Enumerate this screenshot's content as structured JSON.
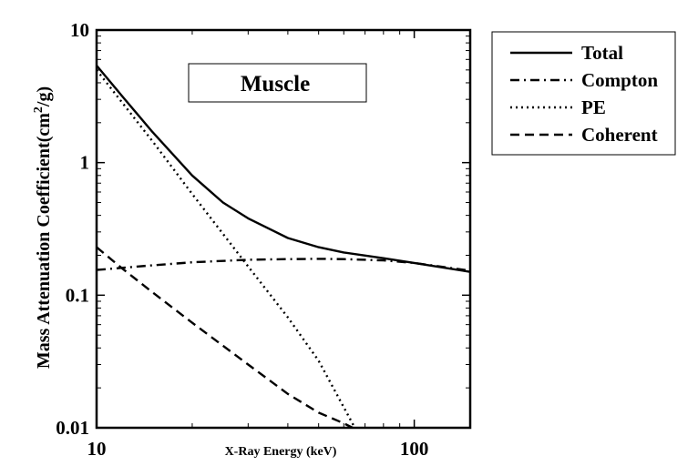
{
  "chart_data": {
    "type": "line",
    "title": "Muscle",
    "xlabel": "X-Ray Energy (keV)",
    "ylabel": "Mass Attenuation Coefficient(cm",
    "ylabel_sup": "2",
    "ylabel_tail": "/g)",
    "x_scale": "log",
    "y_scale": "log",
    "xlim": [
      10,
      150
    ],
    "ylim": [
      0.01,
      10
    ],
    "x_ticks": [
      {
        "value": 10,
        "label": "10"
      },
      {
        "value": 100,
        "label": "100"
      }
    ],
    "y_ticks": [
      {
        "value": 0.01,
        "label": "0.01"
      },
      {
        "value": 0.1,
        "label": "0.1"
      },
      {
        "value": 1,
        "label": "1"
      },
      {
        "value": 10,
        "label": "10"
      }
    ],
    "grid": false,
    "legend_position": "outside-right-top",
    "series": [
      {
        "name": "Total",
        "dash": "solid",
        "x": [
          10,
          12,
          15,
          20,
          25,
          30,
          40,
          50,
          60,
          80,
          100,
          150
        ],
        "y": [
          5.4,
          3.2,
          1.7,
          0.8,
          0.5,
          0.38,
          0.27,
          0.23,
          0.21,
          0.19,
          0.175,
          0.15
        ]
      },
      {
        "name": "Compton",
        "dash": "dash-dot",
        "x": [
          10,
          15,
          20,
          30,
          40,
          50,
          60,
          80,
          100,
          150
        ],
        "y": [
          0.155,
          0.168,
          0.177,
          0.185,
          0.187,
          0.188,
          0.187,
          0.183,
          0.175,
          0.153
        ]
      },
      {
        "name": "PE",
        "dash": "dotted",
        "x": [
          10,
          15,
          20,
          30,
          40,
          50,
          65
        ],
        "y": [
          5.0,
          1.45,
          0.58,
          0.165,
          0.068,
          0.032,
          0.01
        ]
      },
      {
        "name": "Coherent",
        "dash": "dashed",
        "x": [
          10,
          12,
          15,
          20,
          30,
          40,
          50,
          60,
          64
        ],
        "y": [
          0.23,
          0.16,
          0.105,
          0.062,
          0.03,
          0.018,
          0.013,
          0.0108,
          0.01
        ]
      }
    ]
  }
}
